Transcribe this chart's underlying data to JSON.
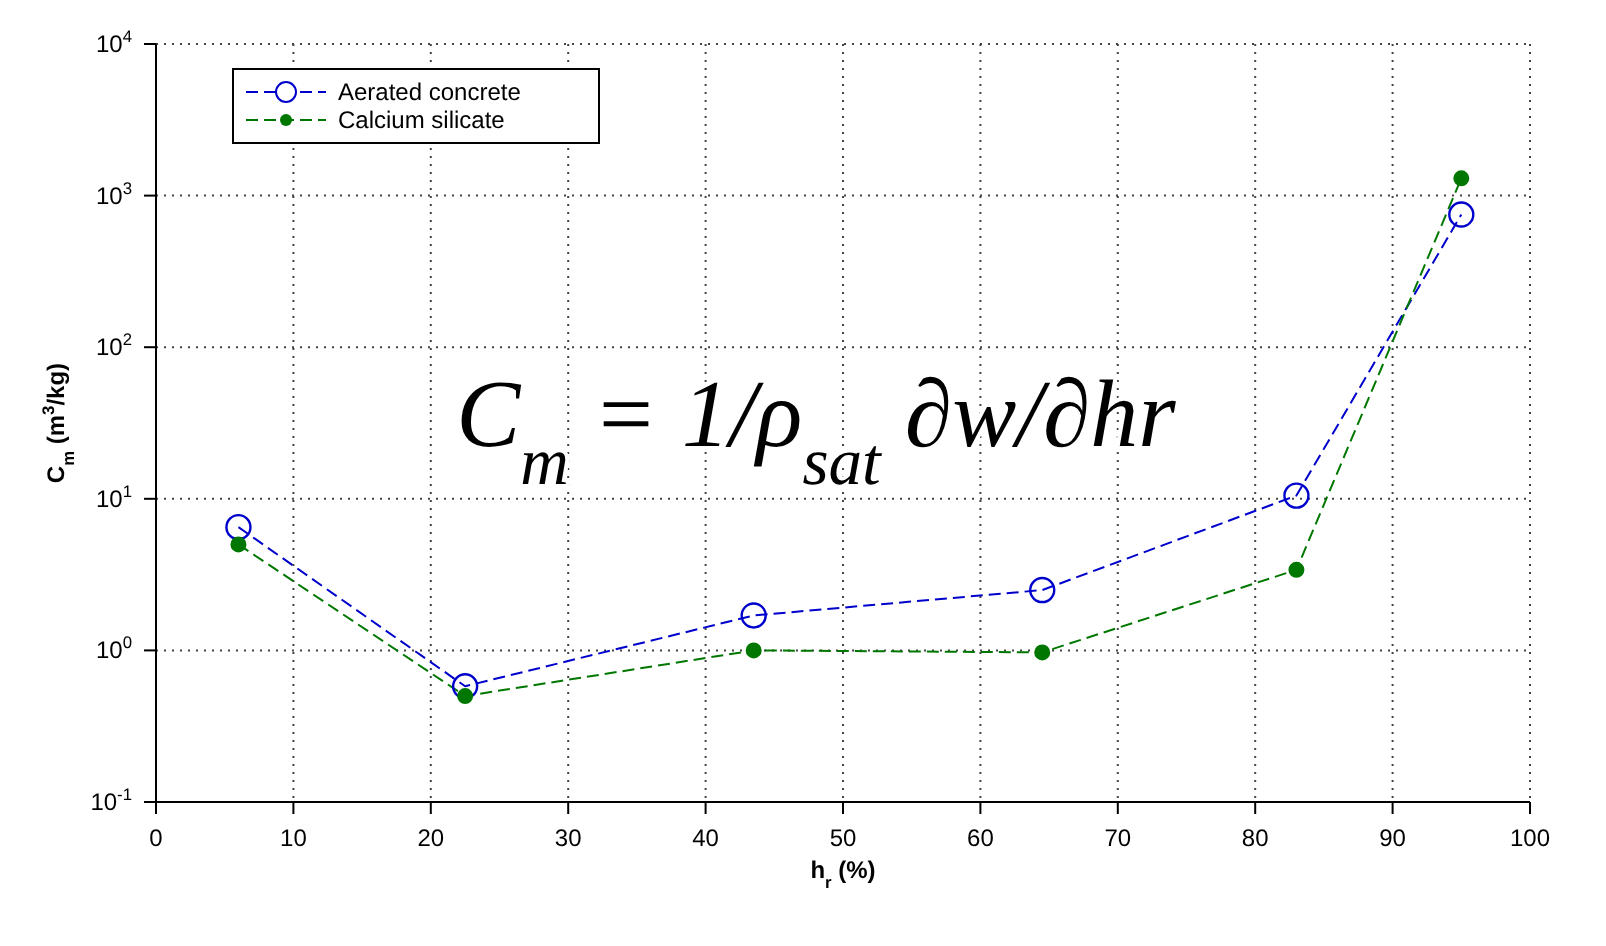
{
  "chart_data": {
    "type": "line",
    "xlabel": "h$_{r}$ (%)",
    "ylabel": "C$_{m}$ (m$^{3}$/kg)",
    "log": "y",
    "grid": true,
    "legend": "top left",
    "marker": "circle",
    "line_style": "dashed",
    "xlim": [
      0,
      100
    ],
    "xticks": [
      0,
      10,
      20,
      30,
      40,
      50,
      60,
      70,
      80,
      90,
      100
    ],
    "ylim": [
      0.1,
      10000
    ],
    "yticks": [
      {
        "value": 0.1,
        "label": "10$^{-1}$"
      },
      {
        "value": 1,
        "label": "10$^{0}$"
      },
      {
        "value": 10,
        "label": "10$^{1}$"
      },
      {
        "value": 100,
        "label": "10$^{2}$"
      },
      {
        "value": 1000,
        "label": "10$^{3}$"
      },
      {
        "value": 10000,
        "label": "10$^{4}$"
      }
    ],
    "x": [
      6,
      22.5,
      43.5,
      64.5,
      83,
      95
    ],
    "series": [
      {
        "name": "Aerated concrete",
        "color": "#0000cc",
        "values": [
          6.5,
          0.58,
          1.7,
          2.5,
          10.5,
          750
        ]
      },
      {
        "name": "Calcium silicate",
        "color": "#007700",
        "values": [
          5,
          0.5,
          1.0,
          0.97,
          3.4,
          1300
        ]
      }
    ],
    "annotations": [
      "C$_{m}$ = 1/ρ$_{sat}$ ∂w/∂hr"
    ]
  }
}
